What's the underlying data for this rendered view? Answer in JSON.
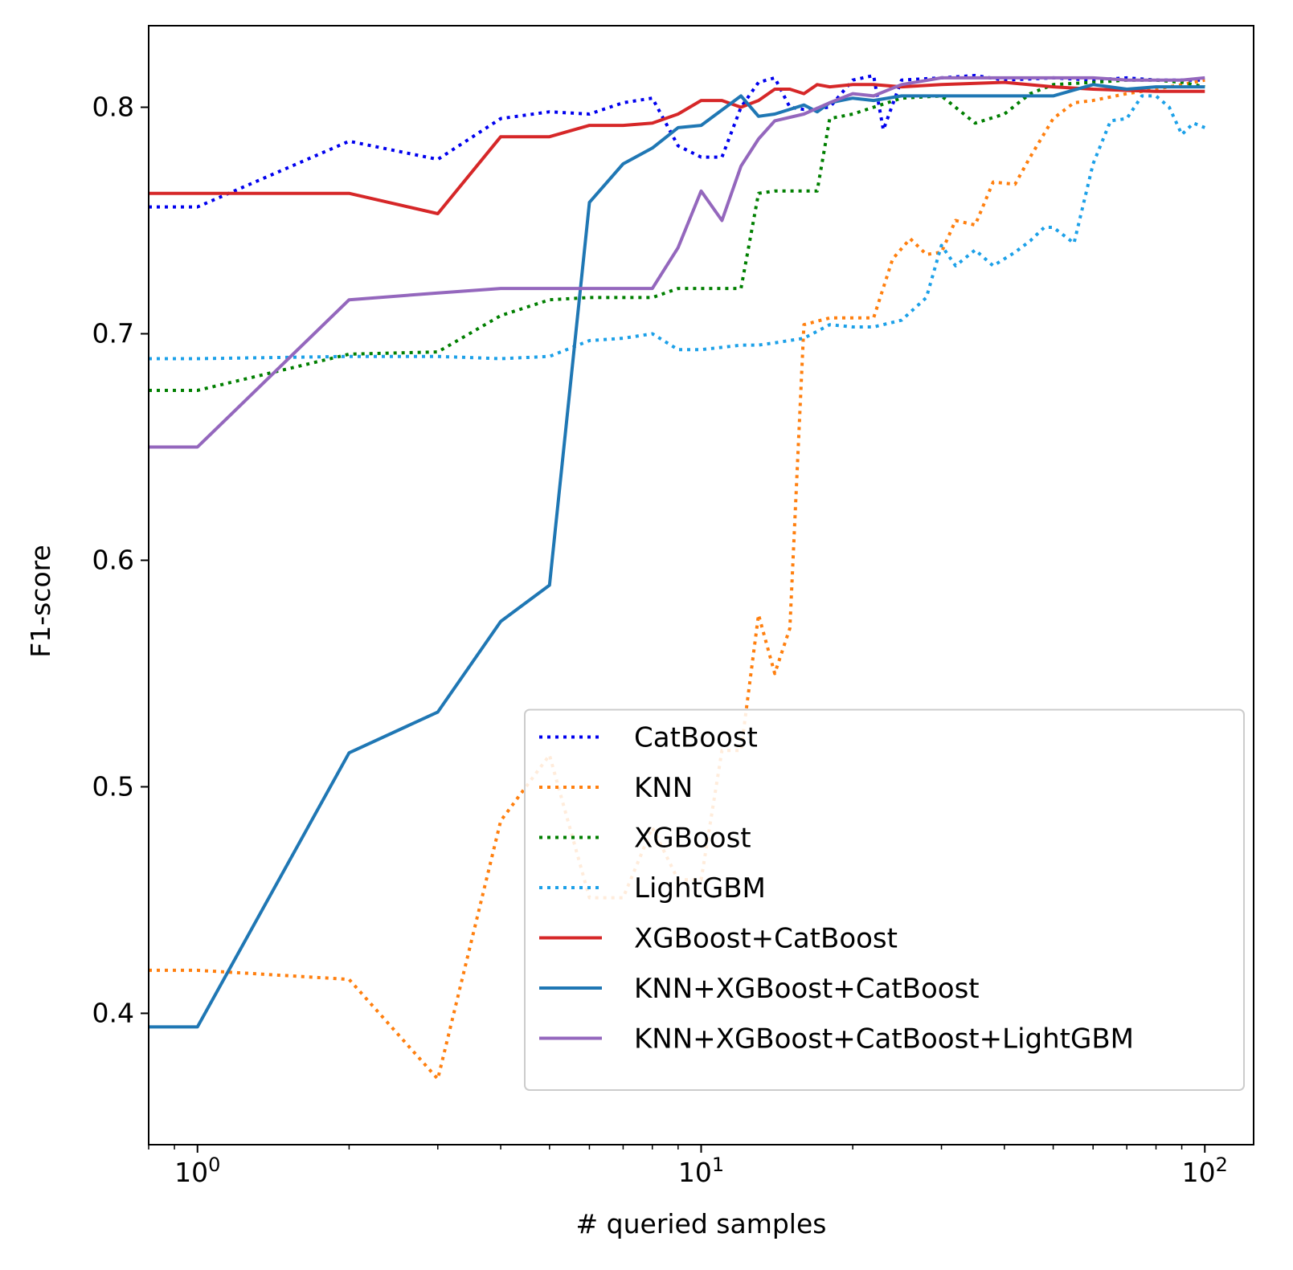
{
  "chart_data": {
    "type": "line",
    "title": "",
    "xlabel": "# queried samples",
    "ylabel": "F1-score",
    "x_scale": "log",
    "xlim": [
      0.8,
      125
    ],
    "ylim": [
      0.342,
      0.836
    ],
    "x_ticks": [
      {
        "value": 1,
        "base": "10",
        "exp": "0"
      },
      {
        "value": 10,
        "base": "10",
        "exp": "1"
      },
      {
        "value": 100,
        "base": "10",
        "exp": "2"
      }
    ],
    "x_minor_ticks": [
      0.8,
      0.9,
      2,
      3,
      4,
      5,
      6,
      7,
      8,
      9,
      20,
      30,
      40,
      50,
      60,
      70,
      80,
      90
    ],
    "y_ticks": [
      {
        "value": 0.4,
        "label": "0.4"
      },
      {
        "value": 0.5,
        "label": "0.5"
      },
      {
        "value": 0.6,
        "label": "0.6"
      },
      {
        "value": 0.7,
        "label": "0.7"
      },
      {
        "value": 0.8,
        "label": "0.8"
      }
    ],
    "grid": false,
    "legend_position": "lower-right",
    "series": [
      {
        "name": "CatBoost",
        "color": "#0000ee",
        "style": "dotted",
        "points": [
          [
            0.8,
            0.756
          ],
          [
            1,
            0.756
          ],
          [
            2,
            0.785
          ],
          [
            3,
            0.777
          ],
          [
            4,
            0.795
          ],
          [
            5,
            0.798
          ],
          [
            6,
            0.797
          ],
          [
            7,
            0.802
          ],
          [
            8,
            0.804
          ],
          [
            9,
            0.783
          ],
          [
            10,
            0.778
          ],
          [
            11,
            0.778
          ],
          [
            12,
            0.8
          ],
          [
            13,
            0.811
          ],
          [
            14,
            0.813
          ],
          [
            15,
            0.8
          ],
          [
            16,
            0.799
          ],
          [
            18,
            0.8
          ],
          [
            20,
            0.812
          ],
          [
            22,
            0.814
          ],
          [
            23,
            0.79
          ],
          [
            25,
            0.812
          ],
          [
            30,
            0.813
          ],
          [
            35,
            0.814
          ],
          [
            40,
            0.812
          ],
          [
            50,
            0.813
          ],
          [
            60,
            0.812
          ],
          [
            70,
            0.813
          ],
          [
            80,
            0.812
          ],
          [
            90,
            0.812
          ],
          [
            100,
            0.812
          ]
        ]
      },
      {
        "name": "KNN",
        "color": "#ff7f0e",
        "style": "dotted",
        "points": [
          [
            0.8,
            0.419
          ],
          [
            1,
            0.419
          ],
          [
            2,
            0.415
          ],
          [
            3,
            0.371
          ],
          [
            4,
            0.485
          ],
          [
            5,
            0.514
          ],
          [
            6,
            0.451
          ],
          [
            7,
            0.451
          ],
          [
            8,
            0.482
          ],
          [
            9,
            0.459
          ],
          [
            10,
            0.459
          ],
          [
            11,
            0.516
          ],
          [
            12,
            0.516
          ],
          [
            13,
            0.576
          ],
          [
            14,
            0.55
          ],
          [
            15,
            0.57
          ],
          [
            16,
            0.704
          ],
          [
            18,
            0.707
          ],
          [
            20,
            0.707
          ],
          [
            22,
            0.707
          ],
          [
            24,
            0.733
          ],
          [
            26,
            0.742
          ],
          [
            28,
            0.735
          ],
          [
            30,
            0.736
          ],
          [
            32,
            0.75
          ],
          [
            35,
            0.748
          ],
          [
            38,
            0.767
          ],
          [
            42,
            0.766
          ],
          [
            45,
            0.778
          ],
          [
            50,
            0.795
          ],
          [
            55,
            0.802
          ],
          [
            60,
            0.803
          ],
          [
            70,
            0.806
          ],
          [
            80,
            0.808
          ],
          [
            90,
            0.81
          ],
          [
            100,
            0.812
          ]
        ]
      },
      {
        "name": "XGBoost",
        "color": "#007f00",
        "style": "dotted",
        "points": [
          [
            0.8,
            0.675
          ],
          [
            1,
            0.675
          ],
          [
            2,
            0.691
          ],
          [
            3,
            0.692
          ],
          [
            4,
            0.708
          ],
          [
            5,
            0.715
          ],
          [
            6,
            0.716
          ],
          [
            7,
            0.716
          ],
          [
            8,
            0.716
          ],
          [
            9,
            0.72
          ],
          [
            10,
            0.72
          ],
          [
            11,
            0.72
          ],
          [
            12,
            0.72
          ],
          [
            13,
            0.762
          ],
          [
            14,
            0.763
          ],
          [
            16,
            0.763
          ],
          [
            17,
            0.763
          ],
          [
            18,
            0.795
          ],
          [
            20,
            0.797
          ],
          [
            22,
            0.8
          ],
          [
            25,
            0.804
          ],
          [
            30,
            0.805
          ],
          [
            35,
            0.793
          ],
          [
            40,
            0.797
          ],
          [
            45,
            0.806
          ],
          [
            50,
            0.81
          ],
          [
            60,
            0.811
          ],
          [
            70,
            0.812
          ],
          [
            80,
            0.812
          ],
          [
            90,
            0.811
          ],
          [
            100,
            0.809
          ]
        ]
      },
      {
        "name": "LightGBM",
        "color": "#1ca0e8",
        "style": "dotted",
        "points": [
          [
            0.8,
            0.689
          ],
          [
            1,
            0.689
          ],
          [
            2,
            0.69
          ],
          [
            3,
            0.69
          ],
          [
            4,
            0.689
          ],
          [
            5,
            0.69
          ],
          [
            6,
            0.697
          ],
          [
            7,
            0.698
          ],
          [
            8,
            0.7
          ],
          [
            9,
            0.693
          ],
          [
            10,
            0.693
          ],
          [
            11,
            0.694
          ],
          [
            12,
            0.695
          ],
          [
            13,
            0.695
          ],
          [
            14,
            0.696
          ],
          [
            16,
            0.698
          ],
          [
            18,
            0.704
          ],
          [
            20,
            0.703
          ],
          [
            22,
            0.703
          ],
          [
            25,
            0.706
          ],
          [
            28,
            0.716
          ],
          [
            30,
            0.739
          ],
          [
            32,
            0.73
          ],
          [
            35,
            0.737
          ],
          [
            38,
            0.73
          ],
          [
            42,
            0.736
          ],
          [
            45,
            0.741
          ],
          [
            48,
            0.747
          ],
          [
            50,
            0.747
          ],
          [
            55,
            0.74
          ],
          [
            60,
            0.775
          ],
          [
            65,
            0.794
          ],
          [
            70,
            0.795
          ],
          [
            75,
            0.805
          ],
          [
            80,
            0.805
          ],
          [
            85,
            0.8
          ],
          [
            90,
            0.788
          ],
          [
            95,
            0.793
          ],
          [
            100,
            0.791
          ]
        ]
      },
      {
        "name": "XGBoost+CatBoost",
        "color": "#d62728",
        "style": "solid",
        "points": [
          [
            0.8,
            0.762
          ],
          [
            1,
            0.762
          ],
          [
            2,
            0.762
          ],
          [
            3,
            0.753
          ],
          [
            4,
            0.787
          ],
          [
            5,
            0.787
          ],
          [
            6,
            0.792
          ],
          [
            7,
            0.792
          ],
          [
            8,
            0.793
          ],
          [
            9,
            0.797
          ],
          [
            10,
            0.803
          ],
          [
            11,
            0.803
          ],
          [
            12,
            0.8
          ],
          [
            13,
            0.803
          ],
          [
            14,
            0.808
          ],
          [
            15,
            0.808
          ],
          [
            16,
            0.806
          ],
          [
            17,
            0.81
          ],
          [
            18,
            0.809
          ],
          [
            20,
            0.81
          ],
          [
            22,
            0.81
          ],
          [
            25,
            0.809
          ],
          [
            30,
            0.81
          ],
          [
            40,
            0.811
          ],
          [
            50,
            0.809
          ],
          [
            60,
            0.808
          ],
          [
            80,
            0.807
          ],
          [
            100,
            0.807
          ]
        ]
      },
      {
        "name": "KNN+XGBoost+CatBoost",
        "color": "#1f77b4",
        "style": "solid",
        "points": [
          [
            0.8,
            0.394
          ],
          [
            1,
            0.394
          ],
          [
            2,
            0.515
          ],
          [
            3,
            0.533
          ],
          [
            4,
            0.573
          ],
          [
            5,
            0.589
          ],
          [
            6,
            0.758
          ],
          [
            7,
            0.775
          ],
          [
            8,
            0.782
          ],
          [
            9,
            0.791
          ],
          [
            10,
            0.792
          ],
          [
            12,
            0.805
          ],
          [
            13,
            0.796
          ],
          [
            14,
            0.797
          ],
          [
            16,
            0.801
          ],
          [
            17,
            0.798
          ],
          [
            18,
            0.802
          ],
          [
            20,
            0.804
          ],
          [
            22,
            0.803
          ],
          [
            25,
            0.805
          ],
          [
            30,
            0.805
          ],
          [
            40,
            0.805
          ],
          [
            50,
            0.805
          ],
          [
            60,
            0.81
          ],
          [
            70,
            0.808
          ],
          [
            80,
            0.809
          ],
          [
            100,
            0.809
          ]
        ]
      },
      {
        "name": "KNN+XGBoost+CatBoost+LightGBM",
        "color": "#9467bd",
        "style": "solid",
        "points": [
          [
            0.8,
            0.65
          ],
          [
            1,
            0.65
          ],
          [
            2,
            0.715
          ],
          [
            3,
            0.718
          ],
          [
            4,
            0.72
          ],
          [
            5,
            0.72
          ],
          [
            6,
            0.72
          ],
          [
            7,
            0.72
          ],
          [
            8,
            0.72
          ],
          [
            9,
            0.738
          ],
          [
            10,
            0.763
          ],
          [
            11,
            0.75
          ],
          [
            12,
            0.774
          ],
          [
            13,
            0.786
          ],
          [
            14,
            0.794
          ],
          [
            16,
            0.797
          ],
          [
            18,
            0.802
          ],
          [
            20,
            0.806
          ],
          [
            22,
            0.805
          ],
          [
            25,
            0.81
          ],
          [
            30,
            0.813
          ],
          [
            35,
            0.813
          ],
          [
            40,
            0.813
          ],
          [
            50,
            0.813
          ],
          [
            60,
            0.813
          ],
          [
            70,
            0.812
          ],
          [
            80,
            0.812
          ],
          [
            90,
            0.812
          ],
          [
            100,
            0.813
          ]
        ]
      }
    ]
  }
}
